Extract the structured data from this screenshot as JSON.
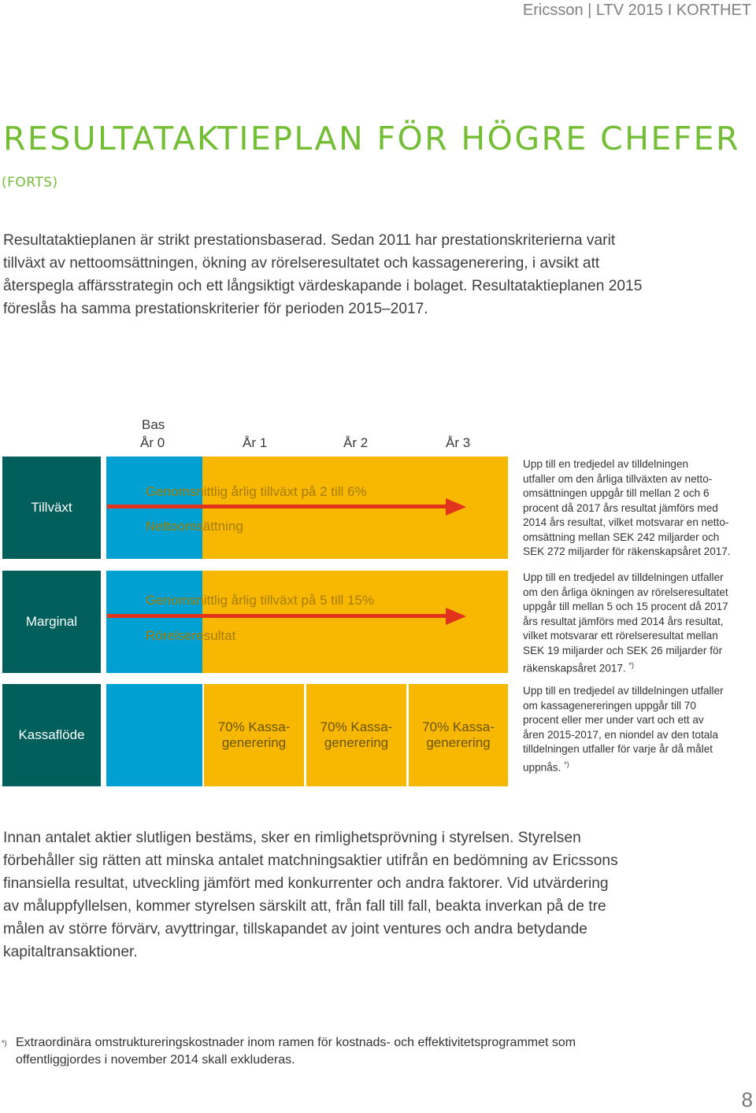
{
  "header": "Ericsson | LTV 2015 I KORTHET",
  "title": "RESULTATAKTIEPLAN FÖR HÖGRE CHEFER",
  "subtitle": "(FORTS)",
  "intro_lines": [
    "Resultataktieplanen är strikt prestationsbaserad. Sedan 2011 har prestationskriterierna varit",
    "tillväxt av nettoomsättningen, ökning av rörelseresultatet och kassagenerering, i avsikt att",
    "återspegla affärsstrategin och ett långsiktigt värdeskapande i bolaget. Resultataktieplanen 2015",
    "föreslås ha samma prestationskriterier för perioden 2015–2017."
  ],
  "diagram": {
    "bas": "Bas",
    "years": [
      "År 0",
      "År 1",
      "År 2",
      "År 3"
    ],
    "rows": [
      {
        "label": "Tillväxt",
        "bar_title": "Genomsnittlig årlig tillväxt på 2 till 6%",
        "bar_sub": "Nettoomsättning",
        "side_lines": [
          "Upp till en tredjedel av tilldelningen",
          "utfaller om den årliga tillväxten av netto-",
          "omsättningen uppgår till mellan 2 och 6",
          "procent då 2017 års resultat jämförs med",
          "2014 års resultat, vilket motsvarar en netto-",
          "omsättning mellan SEK 242 miljarder och",
          "SEK 272 miljarder för räkenskapsåret 2017."
        ]
      },
      {
        "label": "Marginal",
        "bar_title": "Genomsnittlig årlig tillväxt på 5 till 15%",
        "bar_sub": "Rörelseresultat",
        "side_lines": [
          "Upp till en tredjedel av tilldelningen utfaller",
          "om den årliga ökningen av rörelseresultatet",
          "uppgår till mellan 5 och 15 procent då 2017",
          "års resultat jämförs med 2014 års resultat,",
          "vilket motsvarar ett rörelseresultat mellan",
          "SEK 19 miljarder och SEK 26 miljarder för",
          "räkenskapsåret 2017."
        ],
        "side_marker": "*)"
      },
      {
        "label": "Kassaflöde",
        "cells": [
          [
            "70% Kassa-",
            "generering"
          ],
          [
            "70% Kassa-",
            "generering"
          ],
          [
            "70% Kassa-",
            "generering"
          ]
        ],
        "side_lines": [
          "Upp till en tredjedel av tilldelningen utfaller",
          "om kassagenereringen uppgår till 70",
          "procent eller mer under vart och ett av",
          "åren 2015-2017, en niondel av den totala",
          "tilldelningen utfaller för varje år då målet",
          "uppnås."
        ],
        "side_marker": "*)"
      }
    ]
  },
  "after_lines": [
    "Innan antalet aktier slutligen bestäms, sker en rimlighetsprövning i styrelsen. Styrelsen",
    "förbehåller sig rätten att minska antalet matchningsaktier utifrån en bedömning av Ericssons",
    "finansiella resultat, utveckling jämfört med konkurrenter och andra faktorer. Vid utvärdering",
    "av måluppfyllelsen, kommer styrelsen särskilt att, från fall till fall, beakta inverkan på de tre",
    "målen av större förvärv, avyttringar, tillskapandet av joint ventures och andra betydande",
    "kapitaltransaktioner."
  ],
  "footnote": {
    "marker": "*)",
    "lines": [
      "Extraordinära omstruktureringskostnader inom ramen för kostnads- och effektivitetsprogrammet som",
      "offentliggjordes i november 2014 skall exkluderas."
    ]
  },
  "page_number": "8",
  "colors": {
    "title_green": "#74be35",
    "row_label_teal": "#005f5a",
    "base_blue": "#00a1d2",
    "year_yellow": "#f8b700",
    "arrow_red": "#e2341c"
  }
}
